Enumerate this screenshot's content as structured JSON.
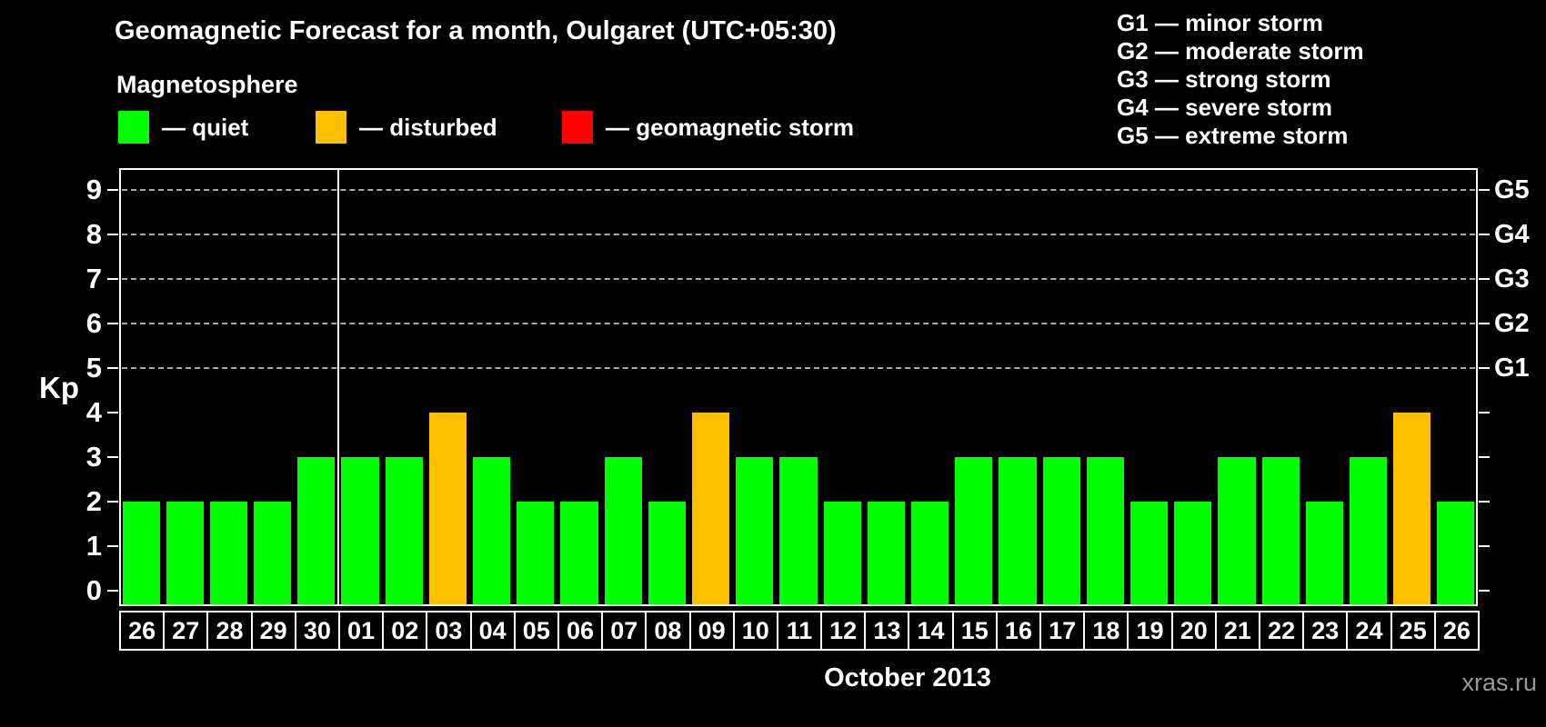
{
  "title": "Geomagnetic Forecast for a month, Oulgaret (UTC+05:30)",
  "subtitle": "Magnetosphere",
  "legend": {
    "quiet": "— quiet",
    "disturbed": "— disturbed",
    "storm": "— geomagnetic storm"
  },
  "g_legend": [
    "G1 — minor storm",
    "G2 — moderate storm",
    "G3 — strong storm",
    "G4 — severe storm",
    "G5 — extreme storm"
  ],
  "axis": {
    "y_ticks": [
      "0",
      "1",
      "2",
      "3",
      "4",
      "5",
      "6",
      "7",
      "8",
      "9"
    ],
    "g_scale": [
      {
        "kp": 5,
        "label": "G1"
      },
      {
        "kp": 6,
        "label": "G2"
      },
      {
        "kp": 7,
        "label": "G3"
      },
      {
        "kp": 8,
        "label": "G4"
      },
      {
        "kp": 9,
        "label": "G5"
      }
    ]
  },
  "watermark": "xras.ru",
  "colors": {
    "quiet": "#00ff00",
    "disturbed": "#ffc000",
    "storm": "#ff0000",
    "grid": "#aaaaaa",
    "frame": "#ffffff",
    "text": "#ffffff",
    "watermark_text": "#999999"
  },
  "chart_data": {
    "type": "bar",
    "title": "Geomagnetic Forecast for a month, Oulgaret (UTC+05:30)",
    "xlabel": "October 2013",
    "ylabel": "Kp",
    "ylim": [
      0,
      9
    ],
    "grid_kp": [
      5,
      6,
      7,
      8,
      9
    ],
    "month_separator_before_index": 5,
    "categories": [
      "26",
      "27",
      "28",
      "29",
      "30",
      "01",
      "02",
      "03",
      "04",
      "05",
      "06",
      "07",
      "08",
      "09",
      "10",
      "11",
      "12",
      "13",
      "14",
      "15",
      "16",
      "17",
      "18",
      "19",
      "20",
      "21",
      "22",
      "23",
      "24",
      "25",
      "26"
    ],
    "values": [
      2,
      2,
      2,
      2,
      3,
      3,
      3,
      4,
      3,
      2,
      2,
      3,
      2,
      4,
      3,
      3,
      2,
      2,
      2,
      3,
      3,
      3,
      3,
      2,
      2,
      3,
      3,
      2,
      3,
      4,
      2
    ],
    "states": [
      "quiet",
      "quiet",
      "quiet",
      "quiet",
      "quiet",
      "quiet",
      "quiet",
      "disturbed",
      "quiet",
      "quiet",
      "quiet",
      "quiet",
      "quiet",
      "disturbed",
      "quiet",
      "quiet",
      "quiet",
      "quiet",
      "quiet",
      "quiet",
      "quiet",
      "quiet",
      "quiet",
      "quiet",
      "quiet",
      "quiet",
      "quiet",
      "quiet",
      "quiet",
      "disturbed",
      "quiet"
    ]
  }
}
